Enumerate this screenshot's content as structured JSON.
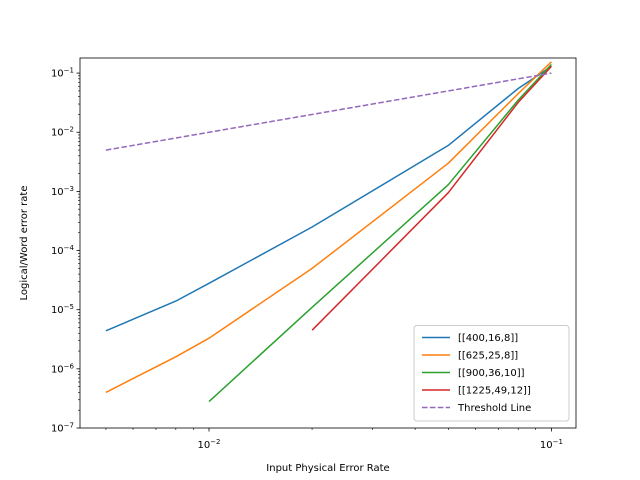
{
  "chart_data": {
    "type": "line",
    "xlabel": "Input Physical Error Rate",
    "ylabel": "Logical/Word error rate",
    "xscale": "log",
    "yscale": "log",
    "xlim": [
      0.0042,
      0.118
    ],
    "ylim": [
      1e-07,
      0.18
    ],
    "x_ticks": [
      {
        "value": 0.01,
        "base": "10",
        "exp": "−2"
      },
      {
        "value": 0.1,
        "base": "10",
        "exp": "−1"
      }
    ],
    "y_ticks": [
      {
        "value": 1e-07,
        "base": "10",
        "exp": "−7"
      },
      {
        "value": 1e-06,
        "base": "10",
        "exp": "−6"
      },
      {
        "value": 1e-05,
        "base": "10",
        "exp": "−5"
      },
      {
        "value": 0.0001,
        "base": "10",
        "exp": "−4"
      },
      {
        "value": 0.001,
        "base": "10",
        "exp": "−3"
      },
      {
        "value": 0.01,
        "base": "10",
        "exp": "−2"
      },
      {
        "value": 0.1,
        "base": "10",
        "exp": "−1"
      }
    ],
    "grid": false,
    "legend_position": "lower-right",
    "series": [
      {
        "name": "[[400,16,8]]",
        "color": "#1f77b4",
        "dash": false,
        "x": [
          0.005,
          0.008,
          0.01,
          0.02,
          0.05,
          0.08,
          0.1
        ],
        "y": [
          4.4e-06,
          1.4e-05,
          2.8e-05,
          0.00025,
          0.006,
          0.055,
          0.13
        ]
      },
      {
        "name": "[[625,25,8]]",
        "color": "#ff7f0e",
        "dash": false,
        "x": [
          0.005,
          0.008,
          0.01,
          0.02,
          0.05,
          0.08,
          0.1
        ],
        "y": [
          4e-07,
          1.6e-06,
          3.3e-06,
          5e-05,
          0.003,
          0.045,
          0.155
        ]
      },
      {
        "name": "[[900,36,10]]",
        "color": "#2ca02c",
        "dash": false,
        "x": [
          0.01,
          0.02,
          0.05,
          0.08,
          0.1
        ],
        "y": [
          2.8e-07,
          1.1e-05,
          0.0013,
          0.035,
          0.14
        ]
      },
      {
        "name": "[[1225,49,12]]",
        "color": "#d62728",
        "dash": false,
        "x": [
          0.02,
          0.05,
          0.08,
          0.1
        ],
        "y": [
          4.5e-06,
          0.00095,
          0.032,
          0.13
        ]
      },
      {
        "name": "Threshold Line",
        "color": "#9467bd",
        "dash": true,
        "x": [
          0.005,
          0.1
        ],
        "y": [
          0.005,
          0.1
        ]
      }
    ]
  }
}
